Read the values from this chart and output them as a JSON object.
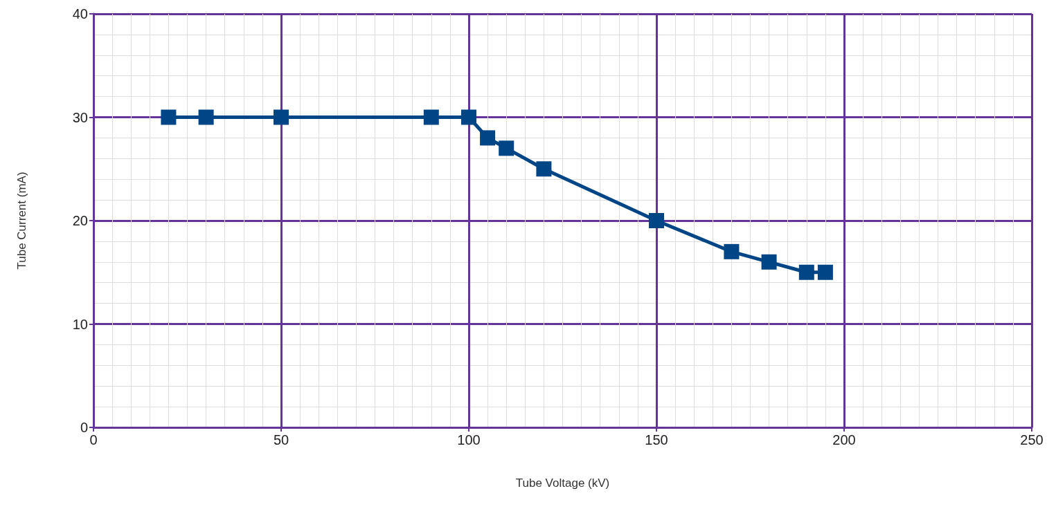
{
  "chart_data": {
    "type": "line",
    "xlabel": "Tube Voltage (kV)",
    "ylabel": "Tube Current (mA)",
    "x": [
      20,
      30,
      50,
      90,
      100,
      105,
      110,
      120,
      150,
      170,
      180,
      190,
      195
    ],
    "series": [
      {
        "color": "#004586",
        "values": [
          30,
          30,
          30,
          30,
          30,
          28,
          27,
          25,
          20,
          17,
          16,
          15,
          15
        ]
      }
    ],
    "xlim": [
      0,
      250
    ],
    "xticks": [
      0,
      50,
      100,
      150,
      200,
      250
    ],
    "ylim": [
      0,
      40
    ],
    "yticks": [
      0,
      10,
      20,
      30,
      40
    ],
    "grid": true,
    "marker": "square",
    "line_style": "solid"
  }
}
